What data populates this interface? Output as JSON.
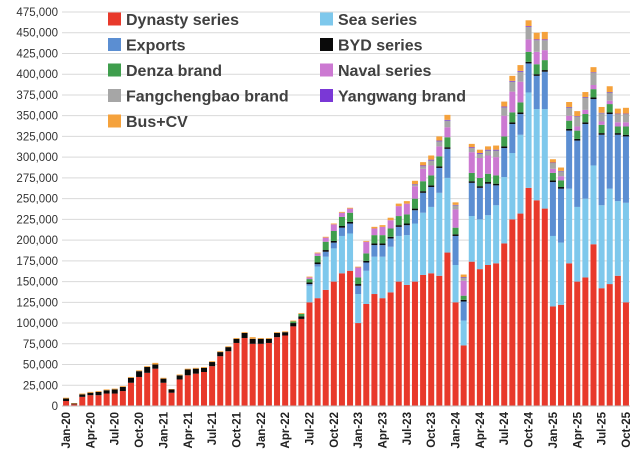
{
  "chart_data": {
    "type": "bar",
    "stacked": true,
    "title": "",
    "xlabel": "",
    "ylabel": "",
    "ylim": [
      0,
      475000
    ],
    "yticks": [
      0,
      25000,
      50000,
      75000,
      100000,
      125000,
      150000,
      175000,
      200000,
      225000,
      250000,
      275000,
      300000,
      325000,
      350000,
      375000,
      400000,
      425000,
      450000,
      475000
    ],
    "ytick_labels": [
      "0",
      "25,000",
      "50,000",
      "75,000",
      "100,000",
      "125,000",
      "150,000",
      "175,000",
      "200,000",
      "225,000",
      "250,000",
      "275,000",
      "300,000",
      "325,000",
      "350,000",
      "375,000",
      "400,000",
      "425,000",
      "450,000",
      "475,000"
    ],
    "categories": [
      "Jan-20",
      "Feb-20",
      "Mar-20",
      "Apr-20",
      "May-20",
      "Jun-20",
      "Jul-20",
      "Aug-20",
      "Sep-20",
      "Oct-20",
      "Nov-20",
      "Dec-20",
      "Jan-21",
      "Feb-21",
      "Mar-21",
      "Apr-21",
      "May-21",
      "Jun-21",
      "Jul-21",
      "Aug-21",
      "Sep-21",
      "Oct-21",
      "Nov-21",
      "Dec-21",
      "Jan-22",
      "Feb-22",
      "Mar-22",
      "Apr-22",
      "May-22",
      "Jun-22",
      "Jul-22",
      "Aug-22",
      "Sep-22",
      "Oct-22",
      "Nov-22",
      "Dec-22",
      "Jan-23",
      "Feb-23",
      "Mar-23",
      "Apr-23",
      "May-23",
      "Jun-23",
      "Jul-23",
      "Aug-23",
      "Sep-23",
      "Oct-23",
      "Nov-23",
      "Dec-23",
      "Jan-24",
      "Feb-24",
      "Mar-24",
      "Apr-24",
      "May-24",
      "Jun-24",
      "Jul-24",
      "Aug-24",
      "Sep-24",
      "Oct-24",
      "Nov-24",
      "Dec-24",
      "Jan-25",
      "Feb-25",
      "Mar-25",
      "Apr-25",
      "May-25",
      "Jun-25",
      "Jul-25",
      "Aug-25",
      "Sep-25",
      "Oct-25"
    ],
    "xtick_labels": [
      "Jan-20",
      "Apr-20",
      "Jul-20",
      "Oct-20",
      "Jan-21",
      "Apr-21",
      "Jul-21",
      "Oct-21",
      "Jan-22",
      "Apr-22",
      "Jul-22",
      "Oct-22",
      "Jan-23",
      "Apr-23",
      "Jul-23",
      "Oct-23",
      "Jan-24",
      "Apr-24",
      "Jul-24",
      "Oct-24",
      "Jan-25",
      "Apr-25",
      "Jul-25",
      "Oct-25"
    ],
    "legend": {
      "position": "top-left",
      "columns": 2
    },
    "series": [
      {
        "name": "Dynasty series",
        "color": "#e8392b",
        "values": [
          6000,
          2000,
          11000,
          13000,
          13000,
          15000,
          15000,
          18000,
          28000,
          35000,
          40000,
          45000,
          28000,
          16000,
          32000,
          37000,
          39000,
          41000,
          48000,
          60000,
          66000,
          76000,
          82000,
          75000,
          75000,
          76000,
          83000,
          85000,
          96000,
          105000,
          125000,
          130000,
          140000,
          150000,
          160000,
          163000,
          100000,
          123000,
          135000,
          130000,
          137000,
          150000,
          146000,
          150000,
          158000,
          160000,
          157000,
          185000,
          125000,
          73000,
          174000,
          165000,
          170000,
          172000,
          196000,
          225000,
          232000,
          263000,
          248000,
          238000,
          120000,
          122000,
          172000,
          150000,
          155000,
          195000,
          142000,
          147000,
          157000,
          125000
        ]
      },
      {
        "name": "Sea series",
        "color": "#7ec8ec",
        "values": [
          0,
          0,
          0,
          0,
          0,
          0,
          0,
          0,
          0,
          0,
          0,
          0,
          0,
          0,
          0,
          0,
          0,
          0,
          0,
          0,
          0,
          0,
          0,
          0,
          0,
          0,
          0,
          0,
          0,
          0,
          20000,
          38000,
          40000,
          40000,
          45000,
          45000,
          35000,
          40000,
          45000,
          50000,
          55000,
          55000,
          60000,
          70000,
          75000,
          80000,
          100000,
          90000,
          45000,
          30000,
          55000,
          60000,
          60000,
          70000,
          80000,
          80000,
          95000,
          115000,
          110000,
          120000,
          85000,
          75000,
          90000,
          90000,
          95000,
          95000,
          100000,
          115000,
          90000,
          120000
        ]
      },
      {
        "name": "Exports",
        "color": "#5b8ed2",
        "values": [
          0,
          0,
          0,
          0,
          0,
          0,
          0,
          0,
          0,
          0,
          0,
          0,
          0,
          0,
          0,
          0,
          0,
          0,
          0,
          0,
          0,
          0,
          0,
          0,
          0,
          0,
          0,
          0,
          0,
          0,
          2000,
          3000,
          6000,
          7000,
          10000,
          12000,
          10000,
          10000,
          14000,
          14000,
          10000,
          11000,
          12000,
          16000,
          24000,
          24000,
          30000,
          35000,
          35000,
          23000,
          40000,
          38000,
          38000,
          24000,
          35000,
          35000,
          25000,
          35000,
          40000,
          45000,
          65000,
          65000,
          70000,
          80000,
          90000,
          80000,
          85000,
          90000,
          80000,
          80000
        ]
      },
      {
        "name": "BYD series",
        "color": "#0a0a0a",
        "values": [
          3000,
          1000,
          3000,
          3000,
          4000,
          4000,
          5000,
          5000,
          6000,
          7000,
          7000,
          5000,
          5000,
          4000,
          5000,
          7000,
          6000,
          5000,
          5000,
          5000,
          5000,
          5000,
          6000,
          6000,
          6000,
          5000,
          5000,
          4000,
          4000,
          3000,
          2000,
          2000,
          2000,
          2000,
          2000,
          2000,
          2000,
          2000,
          2000,
          2000,
          2000,
          2000,
          2000,
          2000,
          2000,
          2000,
          2000,
          2000,
          2000,
          2000,
          2000,
          2000,
          2000,
          2000,
          2000,
          2000,
          2000,
          2000,
          2000,
          2000,
          2000,
          2000,
          2000,
          2000,
          2000,
          2000,
          2000,
          2000,
          2000,
          2000
        ]
      },
      {
        "name": "Denza brand",
        "color": "#3f9e4d",
        "values": [
          0,
          0,
          0,
          0,
          0,
          0,
          0,
          0,
          0,
          0,
          0,
          0,
          0,
          0,
          0,
          0,
          0,
          0,
          0,
          0,
          0,
          0,
          0,
          0,
          0,
          0,
          0,
          0,
          2000,
          3000,
          4000,
          8000,
          10000,
          12000,
          11000,
          11000,
          8000,
          9000,
          10000,
          10000,
          10000,
          11000,
          11000,
          12000,
          12000,
          12000,
          12000,
          12000,
          8000,
          5000,
          10000,
          10000,
          10000,
          10000,
          12000,
          12000,
          12000,
          12000,
          12000,
          12000,
          9000,
          8000,
          10000,
          10000,
          10000,
          10000,
          10000,
          10000,
          8000,
          10000
        ]
      },
      {
        "name": "Naval series",
        "color": "#cc79d2",
        "values": [
          0,
          0,
          0,
          0,
          0,
          0,
          0,
          0,
          0,
          0,
          0,
          0,
          0,
          0,
          0,
          0,
          0,
          0,
          0,
          0,
          0,
          0,
          0,
          0,
          0,
          0,
          0,
          0,
          0,
          0,
          2000,
          3000,
          5000,
          8000,
          5000,
          5000,
          12000,
          14000,
          8000,
          10000,
          10000,
          12000,
          13000,
          15000,
          15000,
          12000,
          12000,
          12000,
          22000,
          18000,
          25000,
          24000,
          22000,
          22000,
          25000,
          25000,
          25000,
          15000,
          15000,
          12000,
          5000,
          5000,
          6000,
          5000,
          5000,
          5000,
          4000,
          4000,
          5000,
          5000
        ]
      },
      {
        "name": "Fangchengbao brand",
        "color": "#a6a6a6",
        "values": [
          0,
          0,
          0,
          0,
          0,
          0,
          0,
          0,
          0,
          0,
          0,
          0,
          0,
          0,
          0,
          0,
          0,
          0,
          0,
          0,
          0,
          0,
          0,
          0,
          0,
          0,
          0,
          0,
          0,
          0,
          0,
          0,
          0,
          0,
          0,
          0,
          0,
          0,
          0,
          0,
          0,
          0,
          0,
          2000,
          3000,
          6000,
          6000,
          8000,
          5000,
          4000,
          5000,
          5000,
          6000,
          8000,
          10000,
          12000,
          12000,
          15000,
          14000,
          12000,
          7000,
          6000,
          10000,
          12000,
          15000,
          15000,
          10000,
          10000,
          10000,
          10000
        ]
      },
      {
        "name": "Yangwang brand",
        "color": "#7a38d6",
        "values": [
          0,
          0,
          0,
          0,
          0,
          0,
          0,
          0,
          0,
          0,
          0,
          0,
          0,
          0,
          0,
          0,
          0,
          0,
          0,
          0,
          0,
          0,
          0,
          0,
          0,
          0,
          0,
          0,
          0,
          0,
          0,
          0,
          0,
          0,
          0,
          0,
          0,
          0,
          0,
          0,
          0,
          0,
          0,
          500,
          1000,
          1000,
          1000,
          1000,
          500,
          500,
          1000,
          1000,
          1000,
          1000,
          1000,
          1000,
          1000,
          1000,
          1000,
          1000,
          500,
          500,
          500,
          500,
          500,
          500,
          500,
          500,
          500,
          500
        ]
      },
      {
        "name": "Bus+CV",
        "color": "#f5a23c",
        "values": [
          1000,
          500,
          1000,
          1000,
          1000,
          1000,
          1000,
          1000,
          1000,
          1000,
          1000,
          2000,
          1000,
          500,
          1000,
          1000,
          1000,
          1000,
          1000,
          1000,
          1000,
          1000,
          1000,
          2000,
          1000,
          1000,
          1000,
          1000,
          1000,
          1000,
          1000,
          1000,
          1000,
          1000,
          1000,
          1000,
          1000,
          1000,
          2000,
          2000,
          3000,
          3000,
          3000,
          4000,
          4000,
          5000,
          5000,
          6000,
          3000,
          3000,
          4000,
          4000,
          4000,
          5000,
          6000,
          6000,
          7000,
          7000,
          8000,
          9000,
          4000,
          4000,
          6000,
          6000,
          6000,
          6000,
          7000,
          7000,
          6000,
          7000
        ]
      }
    ]
  }
}
